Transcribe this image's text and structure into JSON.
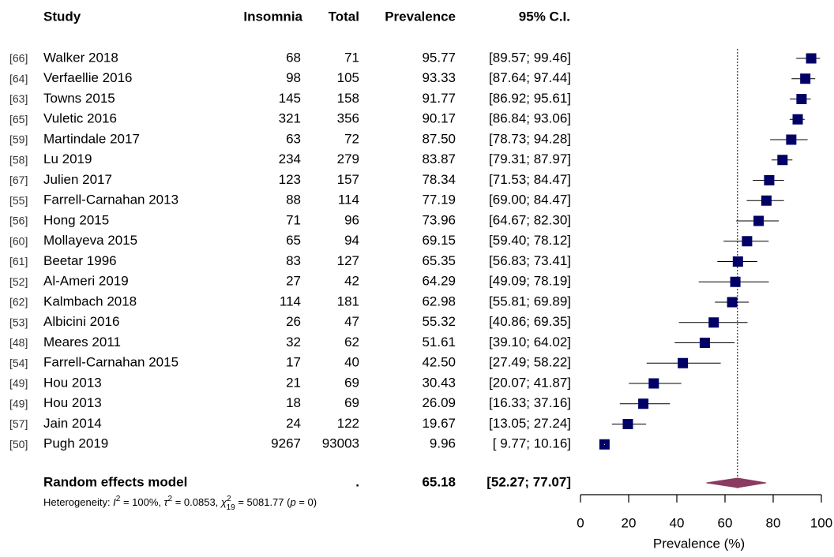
{
  "chart_data": {
    "type": "forest",
    "columns": [
      "Study",
      "Insomnia",
      "Total",
      "Prevalence",
      "95% C.I."
    ],
    "refs": [
      "[66]",
      "[64]",
      "[63]",
      "[65]",
      "[59]",
      "[58]",
      "[67]",
      "[55]",
      "[56]",
      "[60]",
      "[61]",
      "[52]",
      "[62]",
      "[53]",
      "[48]",
      "[54]",
      "[49]",
      "[49]",
      "[57]",
      "[50]"
    ],
    "studies": [
      "Walker 2018",
      "Verfaellie 2016",
      "Towns 2015",
      "Vuletic 2016",
      "Martindale 2017",
      "Lu 2019",
      "Julien 2017",
      "Farrell-Carnahan 2013",
      "Hong 2015",
      "Mollayeva 2015",
      "Beetar 1996",
      "Al-Ameri 2019",
      "Kalmbach 2018",
      "Albicini 2016",
      "Meares 2011",
      "Farrell-Carnahan 2015",
      "Hou 2013",
      "Hou 2013",
      "Jain 2014",
      "Pugh 2019"
    ],
    "insomnia": [
      68,
      98,
      145,
      321,
      63,
      234,
      123,
      88,
      71,
      65,
      83,
      27,
      114,
      26,
      32,
      17,
      21,
      18,
      24,
      9267
    ],
    "total": [
      71,
      105,
      158,
      356,
      72,
      279,
      157,
      114,
      96,
      94,
      127,
      42,
      181,
      47,
      62,
      40,
      69,
      69,
      122,
      93003
    ],
    "values": [
      95.77,
      93.33,
      91.77,
      90.17,
      87.5,
      83.87,
      78.34,
      77.19,
      73.96,
      69.15,
      65.35,
      64.29,
      62.98,
      55.32,
      51.61,
      42.5,
      30.43,
      26.09,
      19.67,
      9.96
    ],
    "value_labels": [
      "95.77",
      "93.33",
      "91.77",
      "90.17",
      "87.50",
      "83.87",
      "78.34",
      "77.19",
      "73.96",
      "69.15",
      "65.35",
      "64.29",
      "62.98",
      "55.32",
      "51.61",
      "42.50",
      "30.43",
      "26.09",
      "19.67",
      "9.96"
    ],
    "ci_low": [
      89.57,
      87.64,
      86.92,
      86.84,
      78.73,
      79.31,
      71.53,
      69.0,
      64.67,
      59.4,
      56.83,
      49.09,
      55.81,
      40.86,
      39.1,
      27.49,
      20.07,
      16.33,
      13.05,
      9.77
    ],
    "ci_high": [
      99.46,
      97.44,
      95.61,
      93.06,
      94.28,
      87.97,
      84.47,
      84.47,
      82.3,
      78.12,
      73.41,
      78.19,
      69.89,
      69.35,
      64.02,
      58.22,
      41.87,
      37.16,
      27.24,
      10.16
    ],
    "ci_labels": [
      "[89.57; 99.46]",
      "[87.64; 97.44]",
      "[86.92; 95.61]",
      "[86.84; 93.06]",
      "[78.73; 94.28]",
      "[79.31; 87.97]",
      "[71.53; 84.47]",
      "[69.00; 84.47]",
      "[64.67; 82.30]",
      "[59.40; 78.12]",
      "[56.83; 73.41]",
      "[49.09; 78.19]",
      "[55.81; 69.89]",
      "[40.86; 69.35]",
      "[39.10; 64.02]",
      "[27.49; 58.22]",
      "[20.07; 41.87]",
      "[16.33; 37.16]",
      "[13.05; 27.24]",
      "[ 9.77; 10.16]"
    ],
    "pooled": {
      "name": "Random effects model",
      "total": ".",
      "value": 65.18,
      "ci_low": 52.27,
      "ci_high": 77.07,
      "ci_label": "[52.27; 77.07]"
    },
    "heterogeneity": [
      "Heterogeneity: ",
      "I",
      "2",
      " = 100%, ",
      "τ",
      "2",
      " = 0.0853, ",
      "χ",
      "2",
      "19",
      " = 5081.77 (",
      "p",
      " = 0)"
    ],
    "xlabel": "Prevalence (%)",
    "xlim": [
      0,
      100
    ],
    "xticks": [
      0,
      20,
      40,
      60,
      80,
      100
    ],
    "marker_color": "#000066",
    "diamond_color": "#8b3a62"
  }
}
